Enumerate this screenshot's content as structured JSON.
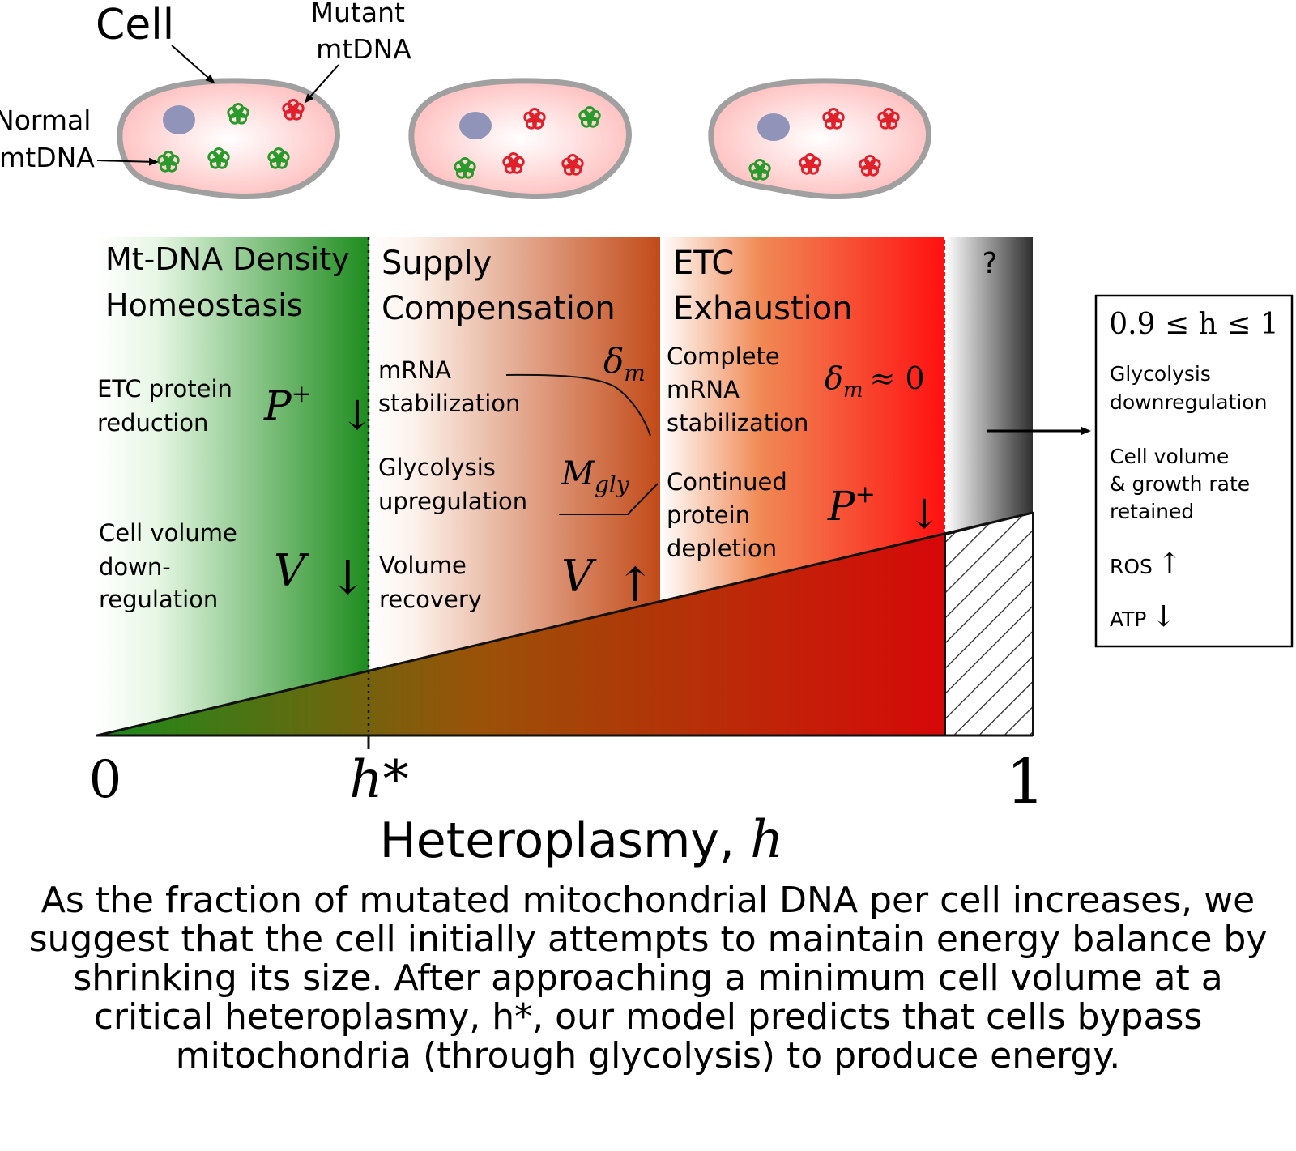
{
  "labels": {
    "cell": "Cell",
    "mutant_line1": "Mutant",
    "mutant_line2": "mtDNA",
    "normal_line1": "Normal",
    "normal_line2": "mtDNA",
    "unknown": "?"
  },
  "regions": {
    "homeostasis": {
      "title_line1": "Mt-DNA Density",
      "title_line2": "Homeostasis",
      "etc_line1": "ETC protein",
      "etc_line2": "reduction",
      "p_symbol": "P",
      "p_sup": "+",
      "down_arrow": "↓",
      "vol_line1": "Cell volume",
      "vol_line2": "down-",
      "vol_line3": "regulation",
      "v_symbol": "V"
    },
    "supply": {
      "title_line1": "Supply",
      "title_line2": "Compensation",
      "mrna_line1": "mRNA",
      "mrna_line2": "stabilization",
      "delta_symbol": "δ",
      "delta_sub": "m",
      "gly_line1": "Glycolysis",
      "gly_line2": "upregulation",
      "m_symbol": "M",
      "m_sub": "gly",
      "vol_line1": "Volume",
      "vol_line2": "recovery",
      "v_symbol": "V",
      "up_arrow": "↑"
    },
    "exhaustion": {
      "title_line1": "ETC",
      "title_line2": "Exhaustion",
      "mrna_line1": "Complete",
      "mrna_line2": "mRNA",
      "mrna_line3": "stabilization",
      "delta_symbol": "δ",
      "delta_sub": "m",
      "approx_zero": "≈ 0",
      "prot_line1": "Continued",
      "prot_line2": "protein",
      "prot_line3": "depletion",
      "p_symbol": "P",
      "p_sup": "+",
      "down_arrow": "↓"
    }
  },
  "axis": {
    "tick_zero": "0",
    "tick_hstar": "h*",
    "tick_one": "1",
    "label": "Heteroplasmy, ",
    "label_var": "h"
  },
  "side_box": {
    "range": "0.9 ≤ h ≤ 1",
    "item1_line1": "Glycolysis",
    "item1_line2": "downregulation",
    "item2_line1": "Cell volume",
    "item2_line2": "& growth rate",
    "item2_line3": "retained",
    "item3": "ROS",
    "item3_arrow": "↑",
    "item4": "ATP",
    "item4_arrow": "↓"
  },
  "caption": "As the fraction of mutated mitochondrial DNA per cell increases, we suggest that the cell initially attempts to maintain energy balance by shrinking its size. After approaching a minimum cell volume at a critical heteroplasmy, h*, our model predicts that cells bypass mitochondria (through glycolysis) to produce energy.",
  "colors": {
    "normal_mtdna": "#2a9a2a",
    "mutant_mtdna": "#e0202a",
    "cell_fill": "#ffc4c4",
    "nucleus": "#8f94b8"
  }
}
